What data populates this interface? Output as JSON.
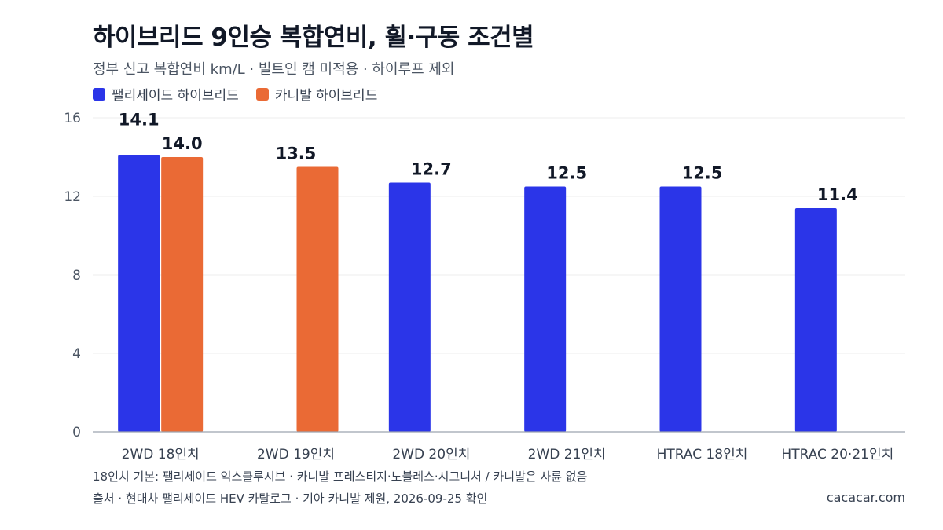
{
  "chart_data": {
    "type": "bar",
    "title": "하이브리드 9인승 복합연비, 휠·구동 조건별",
    "subtitle": "정부 신고 복합연비 km/L · 빌트인 캠 미적용 · 하이루프 제외",
    "categories": [
      "2WD 18인치",
      "2WD 19인치",
      "2WD 20인치",
      "2WD 21인치",
      "HTRAC 18인치",
      "HTRAC 20·21인치"
    ],
    "series": [
      {
        "name": "팰리세이드 하이브리드",
        "color": "#2b35e8",
        "values": [
          14.1,
          null,
          12.7,
          12.5,
          12.5,
          11.4
        ]
      },
      {
        "name": "카니발 하이브리드",
        "color": "#ea6a35",
        "values": [
          14.0,
          13.5,
          null,
          null,
          null,
          null
        ]
      }
    ],
    "ylim": [
      0,
      16
    ],
    "yticks": [
      0,
      4,
      8,
      12,
      16
    ],
    "grid": true,
    "legend_position": "top-left",
    "data_labels": true
  },
  "footer": {
    "note": "18인치 기본: 팰리세이드 익스클루시브 · 카니발 프레스티지·노블레스·시그니처 / 카니발은 사륜 없음",
    "source": "출처 · 현대차 팰리세이드 HEV 카탈로그 · 기아 카니발 제원, 2026-09-25 확인",
    "brand": "cacacar.com"
  }
}
